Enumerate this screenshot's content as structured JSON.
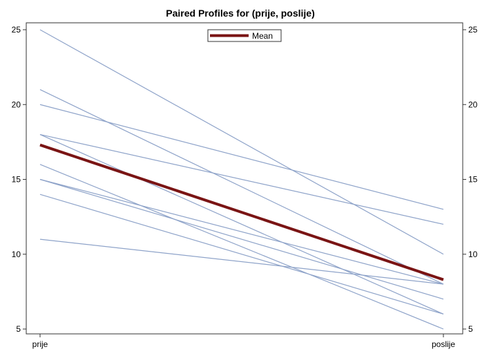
{
  "chart_data": {
    "type": "line",
    "title": "Paired Profiles for (prije, poslije)",
    "xlabel": "",
    "ylabel": "",
    "categories": [
      "prije",
      "poslije"
    ],
    "ylim": [
      5,
      25
    ],
    "yticks": [
      5,
      10,
      15,
      20,
      25
    ],
    "grid": false,
    "right_axis_mirrored": true,
    "legend": {
      "placement": "top-center",
      "entries": [
        "Mean"
      ]
    },
    "colors": {
      "profile": "#8EA3C9",
      "mean": "#7A1414",
      "frame": "#333333"
    },
    "profiles": [
      {
        "values": [
          25,
          10
        ]
      },
      {
        "values": [
          21,
          8
        ]
      },
      {
        "values": [
          20,
          13
        ]
      },
      {
        "values": [
          18,
          12
        ]
      },
      {
        "values": [
          18,
          6
        ]
      },
      {
        "values": [
          16,
          5
        ]
      },
      {
        "values": [
          15,
          8
        ]
      },
      {
        "values": [
          15,
          7
        ]
      },
      {
        "values": [
          14,
          6
        ]
      },
      {
        "values": [
          11,
          8
        ]
      }
    ],
    "series": [
      {
        "name": "Mean",
        "values": [
          17.3,
          8.3
        ]
      }
    ]
  }
}
